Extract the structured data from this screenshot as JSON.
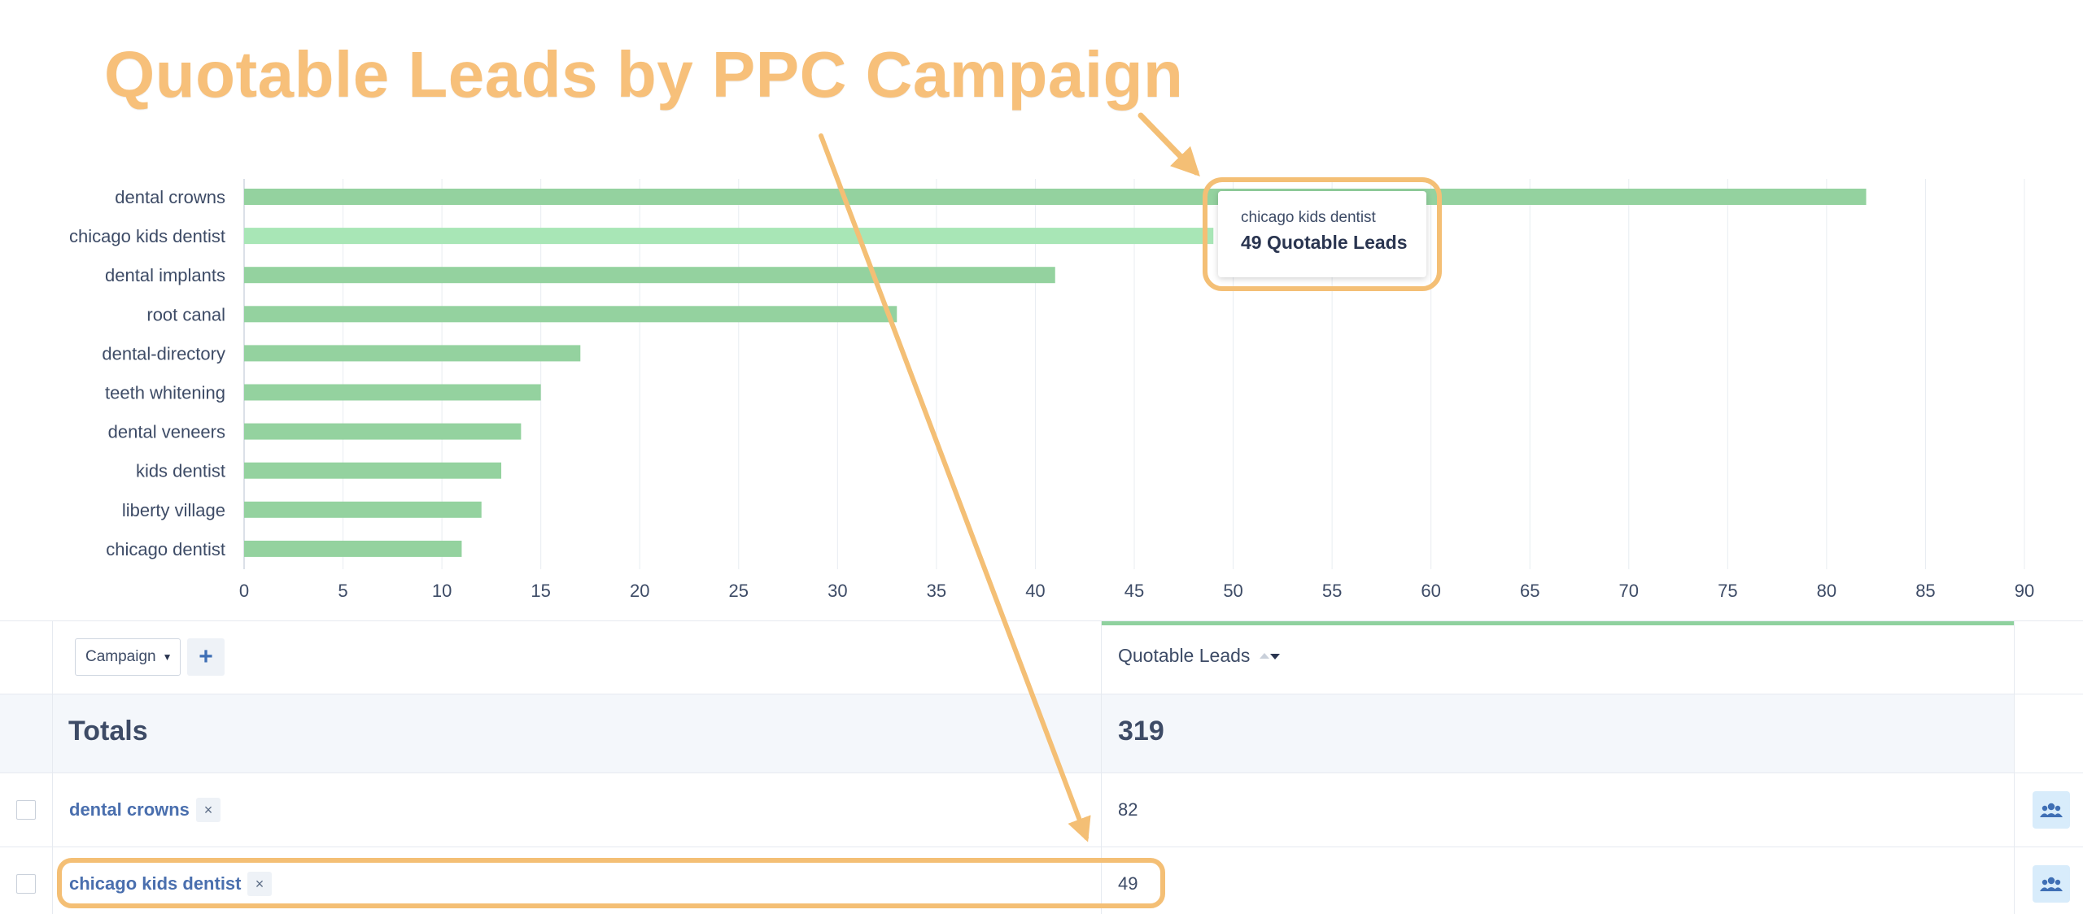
{
  "annotation": {
    "title": "Quotable Leads by PPC Campaign",
    "color": "#f4bf75"
  },
  "chart_data": {
    "type": "bar",
    "orientation": "horizontal",
    "categories": [
      "dental crowns",
      "chicago kids dentist",
      "dental implants",
      "root canal",
      "dental-directory",
      "teeth whitening",
      "dental veneers",
      "kids dentist",
      "liberty village",
      "chicago dentist"
    ],
    "values": [
      82,
      49,
      41,
      33,
      17,
      15,
      14,
      13,
      12,
      11
    ],
    "highlighted_category": "chicago kids dentist",
    "xlim": [
      0,
      90
    ],
    "x_ticks": [
      0,
      5,
      10,
      15,
      20,
      25,
      30,
      35,
      40,
      45,
      50,
      55,
      60,
      65,
      70,
      75,
      80,
      85,
      90
    ],
    "grid": true,
    "colors": {
      "bar": "#94d29f",
      "bar_highlight": "#a8e6b6",
      "grid": "#e8ecf1"
    },
    "tooltip": {
      "campaign": "chicago kids dentist",
      "value": "49",
      "value_suffix": "Quotable Leads"
    }
  },
  "table": {
    "dimension_select": "Campaign",
    "add_label": "+",
    "metric_header": "Quotable Leads",
    "totals_label": "Totals",
    "totals_value": "319",
    "rows": [
      {
        "name": "dental crowns",
        "value": "82"
      },
      {
        "name": "chicago kids dentist",
        "value": "49"
      }
    ],
    "remove_glyph": "×",
    "icons": {
      "sort": "sort-icon",
      "row_action": "users-icon",
      "remove": "close-icon"
    },
    "accent_color": "#8fd19e"
  }
}
